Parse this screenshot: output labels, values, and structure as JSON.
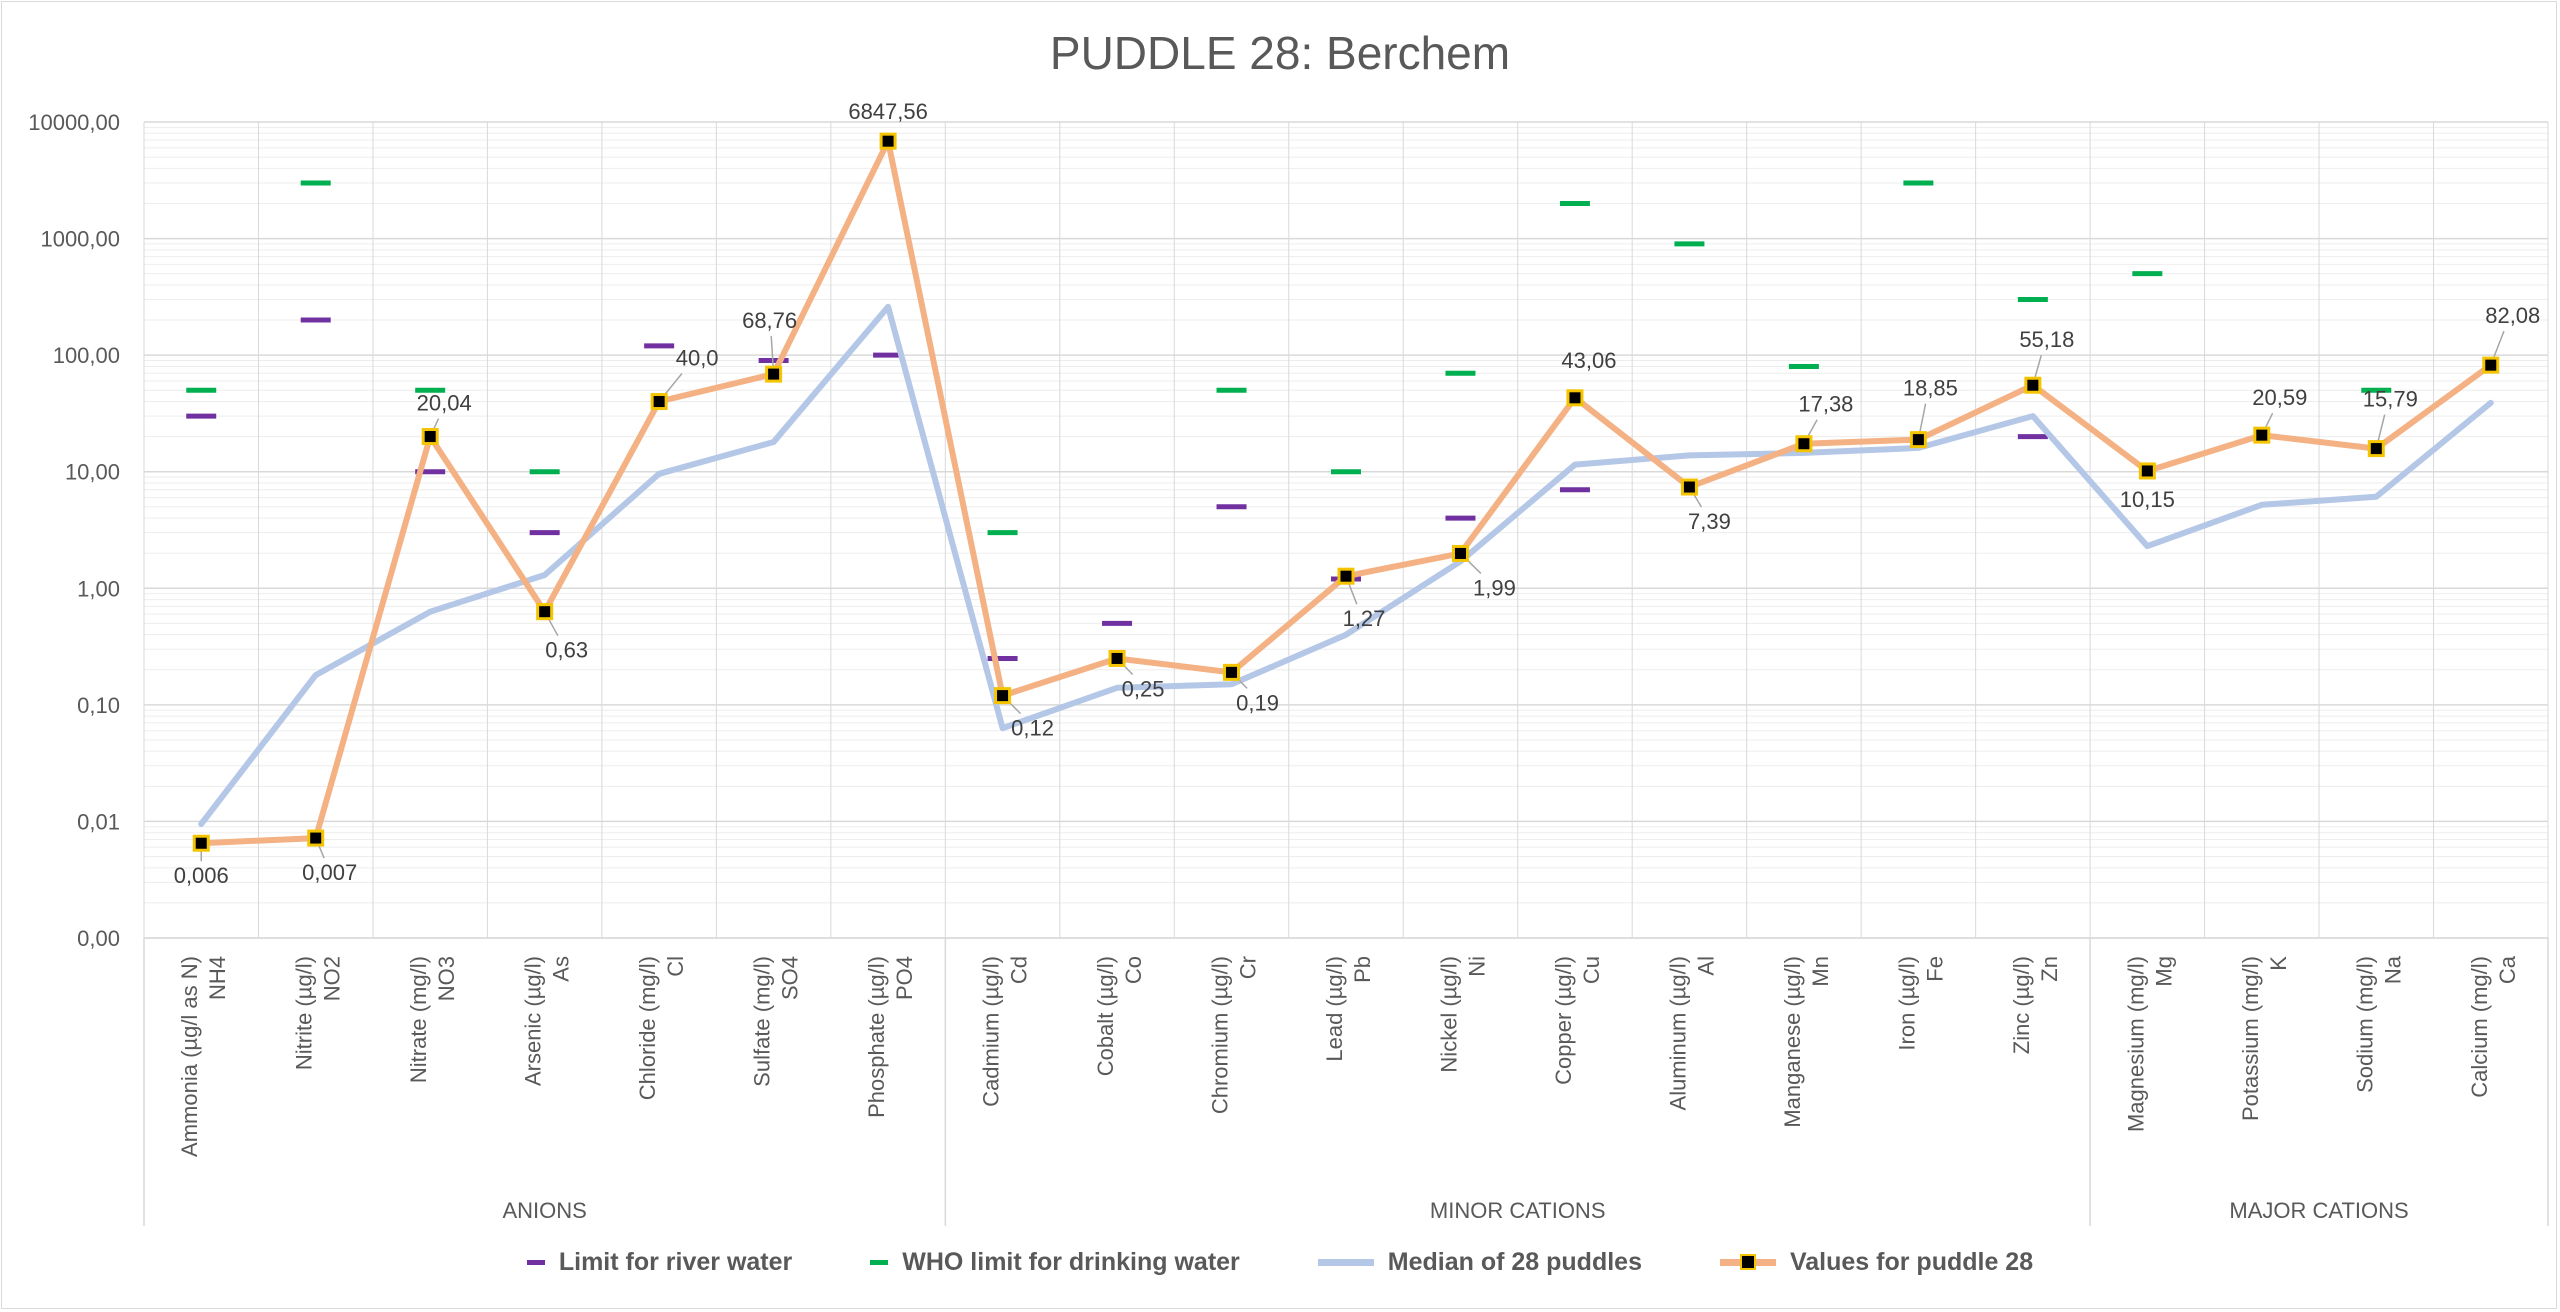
{
  "chart_data": {
    "type": "line",
    "title": "PUDDLE 28: Berchem",
    "y_scale": "log",
    "ylim": [
      0.001,
      10000
    ],
    "y_ticks": [
      0.001,
      0.01,
      0.1,
      1,
      10,
      100,
      1000,
      10000
    ],
    "y_tick_labels": [
      "0,00",
      "0,01",
      "0,10",
      "1,00",
      "10,00",
      "100,00",
      "1000,00",
      "10000,00"
    ],
    "categories": [
      [
        "Ammonia (µg/l as N)",
        "NH4"
      ],
      [
        "Nitrite (µg/l)",
        "NO2"
      ],
      [
        "Nitrate (mg/l)",
        "NO3"
      ],
      [
        "Arsenic (µg/l)",
        "As"
      ],
      [
        "Chloride (mg/l)",
        "Cl"
      ],
      [
        "Sulfate (mg/l)",
        "SO4"
      ],
      [
        "Phosphate (µg/l)",
        "PO4"
      ],
      [
        "Cadmium (µg/l)",
        "Cd"
      ],
      [
        "Cobalt (µg/l)",
        "Co"
      ],
      [
        "Chromium (µg/l)",
        "Cr"
      ],
      [
        "Lead (µg/l)",
        "Pb"
      ],
      [
        "Nickel (µg/l)",
        "Ni"
      ],
      [
        "Copper (µg/l)",
        "Cu"
      ],
      [
        "Aluminum (µg/l)",
        "Al"
      ],
      [
        "Manganese (µg/l)",
        "Mn"
      ],
      [
        "Iron (µg/l)",
        "Fe"
      ],
      [
        "Zinc (µg/l)",
        "Zn"
      ],
      [
        "Magnesium (mg/l)",
        "Mg"
      ],
      [
        "Potassium (mg/l)",
        "K"
      ],
      [
        "Sodium (mg/l)",
        "Na"
      ],
      [
        "Calcium (mg/l)",
        "Ca"
      ]
    ],
    "groups": [
      {
        "name": "ANIONS",
        "start": 0,
        "end": 6
      },
      {
        "name": "MINOR CATIONS",
        "start": 7,
        "end": 16
      },
      {
        "name": "MAJOR CATIONS",
        "start": 17,
        "end": 20
      }
    ],
    "series": [
      {
        "name": "Limit for river water",
        "style": "dash",
        "color": "#7030a0",
        "values": [
          30,
          200,
          10,
          3,
          120,
          90,
          100,
          0.25,
          0.5,
          5,
          1.2,
          4,
          7,
          null,
          null,
          null,
          20,
          null,
          null,
          null,
          null
        ]
      },
      {
        "name": "WHO limit for drinking water",
        "style": "dash",
        "color": "#00b050",
        "values": [
          50,
          3000,
          50,
          10,
          null,
          null,
          null,
          3,
          null,
          50,
          10,
          70,
          2000,
          900,
          80,
          3000,
          300,
          500,
          null,
          50,
          null
        ]
      },
      {
        "name": "Median of 28 puddles",
        "style": "line",
        "color": "#b4c7e7",
        "values": [
          0.0095,
          0.18,
          0.63,
          1.3,
          9.6,
          18,
          260,
          0.063,
          0.14,
          0.15,
          0.4,
          1.7,
          11.5,
          13.8,
          14.5,
          16,
          30,
          2.3,
          5.2,
          6.1,
          39
        ]
      },
      {
        "name": "Values for puddle 28",
        "style": "line-marker",
        "color": "#f4b183",
        "values": [
          0.0065,
          0.0072,
          20.04,
          0.63,
          40.0,
          68.76,
          6847.56,
          0.12,
          0.25,
          0.19,
          1.27,
          1.99,
          43.06,
          7.39,
          17.38,
          18.85,
          55.18,
          10.15,
          20.59,
          15.79,
          82.08
        ],
        "labels": [
          "0,006",
          "0,007",
          "20,04",
          "0,63",
          "40,0",
          "68,76",
          "6847,56",
          "0,12",
          "0,25",
          "0,19",
          "1,27",
          "1,99",
          "43,06",
          "7,39",
          "17,38",
          "18,85",
          "55,18",
          "10,15",
          "20,59",
          "15,79",
          "82,08"
        ]
      }
    ],
    "grid": true,
    "legend_position": "bottom",
    "colors": {
      "gridline": "#d9d9d9",
      "minor_gridline": "#ededed",
      "axis_text": "#595959",
      "marker_fill": "#000000",
      "marker_border": "#f5c400"
    }
  }
}
